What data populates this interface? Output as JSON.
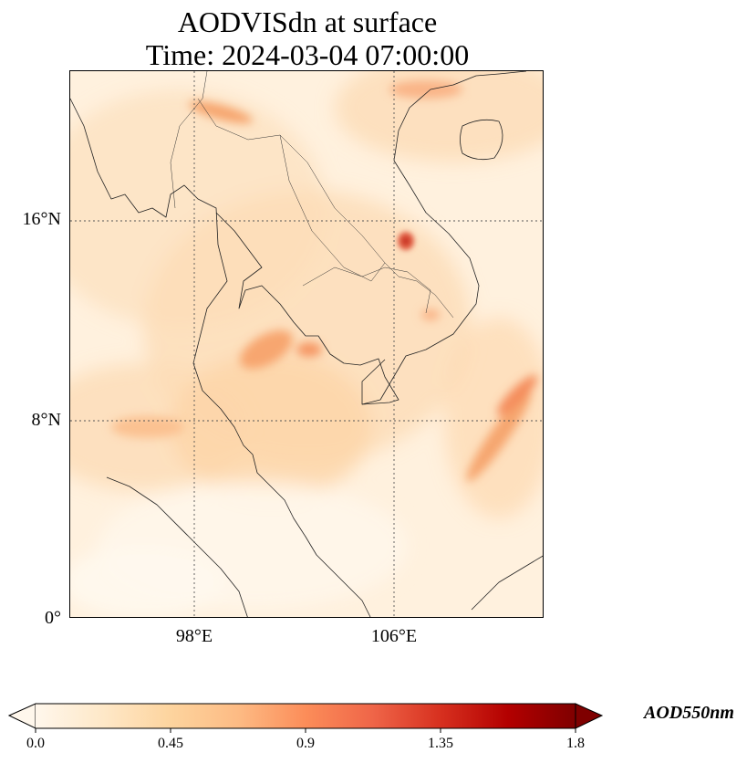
{
  "title": {
    "line1": "AODVISdn at surface",
    "line2": "Time: 2024-03-04 07:00:00"
  },
  "axes": {
    "lat_labels": [
      "16°N",
      "8°N",
      "0°"
    ],
    "lon_labels": [
      "98°E",
      "106°E"
    ],
    "lat_ticks_deg": [
      16,
      8,
      0
    ],
    "lon_ticks_deg": [
      98,
      106
    ],
    "extent": {
      "lon_min": 93,
      "lon_max": 112,
      "lat_min": 0,
      "lat_max": 22
    }
  },
  "colorbar": {
    "label": "AOD550nm",
    "ticks": [
      "0.0",
      "0.45",
      "0.9",
      "1.35",
      "1.8"
    ],
    "min": 0.0,
    "max": 1.8,
    "colormap": "OrRd",
    "colors": [
      "#fff7ec",
      "#fee8c8",
      "#fdd49e",
      "#fdbb84",
      "#fc8d59",
      "#ef6548",
      "#d7301f",
      "#b30000",
      "#7f0000"
    ],
    "extend": "both"
  },
  "colors": {
    "map_background": "#fff1de",
    "coastline": "#222222",
    "gridline": "#555555"
  }
}
